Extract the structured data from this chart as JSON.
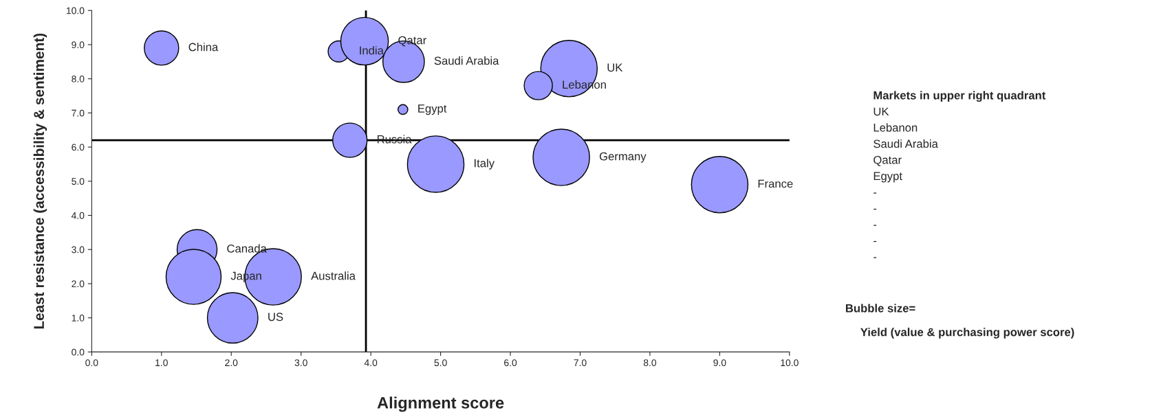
{
  "chart_data": {
    "type": "bubble",
    "xlabel": "Alignment score",
    "ylabel": "Least resistance (accessibility & sentiment)",
    "x": [
      1.0,
      3.54,
      3.91,
      4.47,
      6.84,
      6.4,
      4.46,
      3.7,
      4.93,
      6.73,
      9.0,
      1.51,
      1.46,
      2.6,
      2.02
    ],
    "series": [
      {
        "color": "#9999ff",
        "values": [
          8.9,
          8.8,
          9.1,
          8.5,
          8.3,
          7.8,
          7.1,
          6.2,
          5.5,
          5.7,
          4.9,
          3.0,
          2.2,
          2.2,
          1.0
        ],
        "sizes": [
          0.37,
          0.14,
          0.71,
          0.54,
          1,
          0.25,
          0.03,
          0.37,
          1,
          1,
          1,
          0.5,
          0.95,
          1,
          0.8
        ]
      }
    ],
    "xlim": [
      0,
      10
    ],
    "ylim": [
      0,
      10
    ],
    "xticks": [
      {
        "value": 0,
        "label": "0.0"
      },
      {
        "value": 1,
        "label": "1.0"
      },
      {
        "value": 2,
        "label": "2.0"
      },
      {
        "value": 3,
        "label": "3.0"
      },
      {
        "value": 4,
        "label": "4.0"
      },
      {
        "value": 5,
        "label": "5.0"
      },
      {
        "value": 6,
        "label": "6.0"
      },
      {
        "value": 7,
        "label": "7.0"
      },
      {
        "value": 8,
        "label": "8.0"
      },
      {
        "value": 9,
        "label": "9.0"
      },
      {
        "value": 10,
        "label": "10.0"
      }
    ],
    "yticks": [
      {
        "value": 0,
        "label": "0.0"
      },
      {
        "value": 1,
        "label": "1.0"
      },
      {
        "value": 2,
        "label": "2.0"
      },
      {
        "value": 3,
        "label": "3.0"
      },
      {
        "value": 4,
        "label": "4.0"
      },
      {
        "value": 5,
        "label": "5.0"
      },
      {
        "value": 6,
        "label": "6.0"
      },
      {
        "value": 7,
        "label": "7.0"
      },
      {
        "value": 8,
        "label": "8.0"
      },
      {
        "value": 9,
        "label": "9.0"
      },
      {
        "value": 10,
        "label": "10.0"
      }
    ],
    "ref_lines": [
      {
        "axis": "x",
        "value": 3.93,
        "color": "#000000"
      },
      {
        "axis": "y",
        "value": 6.2,
        "color": "#000000"
      }
    ],
    "grid": false,
    "annotations": [
      "China",
      "India",
      "Qatar",
      "Saudi Arabia",
      "UK",
      "Lebanon",
      "Egypt",
      "Russia",
      "Italy",
      "Germany",
      "France",
      "Canada",
      "Japan",
      "Australia",
      "US",
      "Markets in upper right quadrant",
      "UK",
      "Lebanon",
      "Saudi Arabia",
      "Qatar",
      "Egypt",
      "-",
      "-",
      "-",
      "-",
      "-",
      "Bubble size=",
      "Yield (value & purchasing power score)"
    ]
  }
}
